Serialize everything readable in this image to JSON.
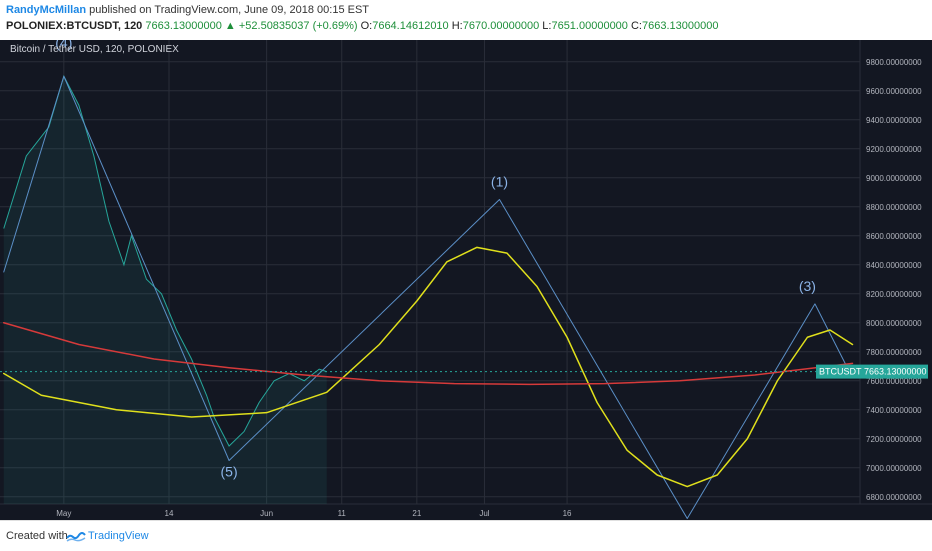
{
  "header": {
    "author": "RandyMcMillan",
    "published": "published on TradingView.com, June 09, 2018 00:15 EST"
  },
  "quote": {
    "symbol": "POLONIEX:BTCUSDT, 120",
    "last": "7663.13000000",
    "change": "+52.50835037 (+0.69%)",
    "o_label": "O:",
    "o": "7664.14612010",
    "h_label": "H:",
    "h": "7670.00000000",
    "l_label": "L:",
    "l": "7651.00000000",
    "c_label": "C:",
    "c": "7663.13000000"
  },
  "chart_data": {
    "type": "line",
    "title": "Bitcoin / Tether USD, 120, POLONIEX",
    "ylim": [
      6750,
      9950
    ],
    "y_ticks": [
      "6800.00000000",
      "7000.00000000",
      "7200.00000000",
      "7400.00000000",
      "7600.00000000",
      "7800.00000000",
      "8000.00000000",
      "8200.00000000",
      "8400.00000000",
      "8600.00000000",
      "8800.00000000",
      "9000.00000000",
      "9200.00000000",
      "9400.00000000",
      "9600.00000000",
      "9800.00000000"
    ],
    "x_ticks": [
      "May",
      "14",
      "Jun",
      "11",
      "21",
      "Jul",
      "16"
    ],
    "x_tick_pos": [
      3,
      17,
      30,
      40,
      50,
      59,
      70
    ],
    "xlim": [
      -5.5,
      109
    ],
    "price_tag": {
      "symbol": "BTCUSDT",
      "value": "7663.13000000",
      "y": 7663.13
    },
    "price_series": {
      "name": "BTCUSDT",
      "color": "#26a69a",
      "points": [
        [
          -5,
          8650
        ],
        [
          -2,
          9150
        ],
        [
          1,
          9350
        ],
        [
          3,
          9700
        ],
        [
          5,
          9500
        ],
        [
          7,
          9150
        ],
        [
          9,
          8700
        ],
        [
          11,
          8400
        ],
        [
          12,
          8600
        ],
        [
          14,
          8300
        ],
        [
          16,
          8200
        ],
        [
          18,
          7950
        ],
        [
          20,
          7750
        ],
        [
          22,
          7500
        ],
        [
          23,
          7350
        ],
        [
          25,
          7150
        ],
        [
          27,
          7250
        ],
        [
          29,
          7450
        ],
        [
          31,
          7600
        ],
        [
          33,
          7650
        ],
        [
          35,
          7600
        ],
        [
          37,
          7680
        ],
        [
          38,
          7663
        ]
      ]
    },
    "wave_labels": [
      {
        "label": "(4)",
        "x": 3,
        "y": 9900
      },
      {
        "label": "(5)",
        "x": 25,
        "y": 6940
      },
      {
        "label": "(1)",
        "x": 61,
        "y": 8940
      },
      {
        "label": "(3)",
        "x": 102,
        "y": 8220
      }
    ],
    "series": [
      {
        "color": "#5b8fc7",
        "points": [
          [
            -5,
            8350
          ],
          [
            3,
            9700
          ],
          [
            25,
            7050
          ],
          [
            61,
            8850
          ],
          [
            86,
            6650
          ],
          [
            103,
            8130
          ],
          [
            108,
            7620
          ]
        ]
      },
      {
        "color": "#e0e01c",
        "points": [
          [
            -5,
            7650
          ],
          [
            0,
            7500
          ],
          [
            10,
            7400
          ],
          [
            20,
            7350
          ],
          [
            30,
            7380
          ],
          [
            38,
            7520
          ],
          [
            45,
            7850
          ],
          [
            50,
            8150
          ],
          [
            54,
            8420
          ],
          [
            58,
            8520
          ],
          [
            62,
            8480
          ],
          [
            66,
            8250
          ],
          [
            70,
            7900
          ],
          [
            74,
            7450
          ],
          [
            78,
            7120
          ],
          [
            82,
            6950
          ],
          [
            86,
            6870
          ],
          [
            90,
            6950
          ],
          [
            94,
            7200
          ],
          [
            98,
            7600
          ],
          [
            102,
            7900
          ],
          [
            105,
            7950
          ],
          [
            108,
            7850
          ]
        ]
      },
      {
        "color": "#d63a3a",
        "points": [
          [
            -5,
            8000
          ],
          [
            5,
            7850
          ],
          [
            15,
            7750
          ],
          [
            25,
            7690
          ],
          [
            35,
            7640
          ],
          [
            45,
            7600
          ],
          [
            55,
            7580
          ],
          [
            65,
            7575
          ],
          [
            75,
            7580
          ],
          [
            85,
            7600
          ],
          [
            95,
            7640
          ],
          [
            108,
            7720
          ]
        ]
      }
    ],
    "legend": "none",
    "grid": true
  },
  "footer": {
    "created": "Created with",
    "brand": "TradingView"
  }
}
